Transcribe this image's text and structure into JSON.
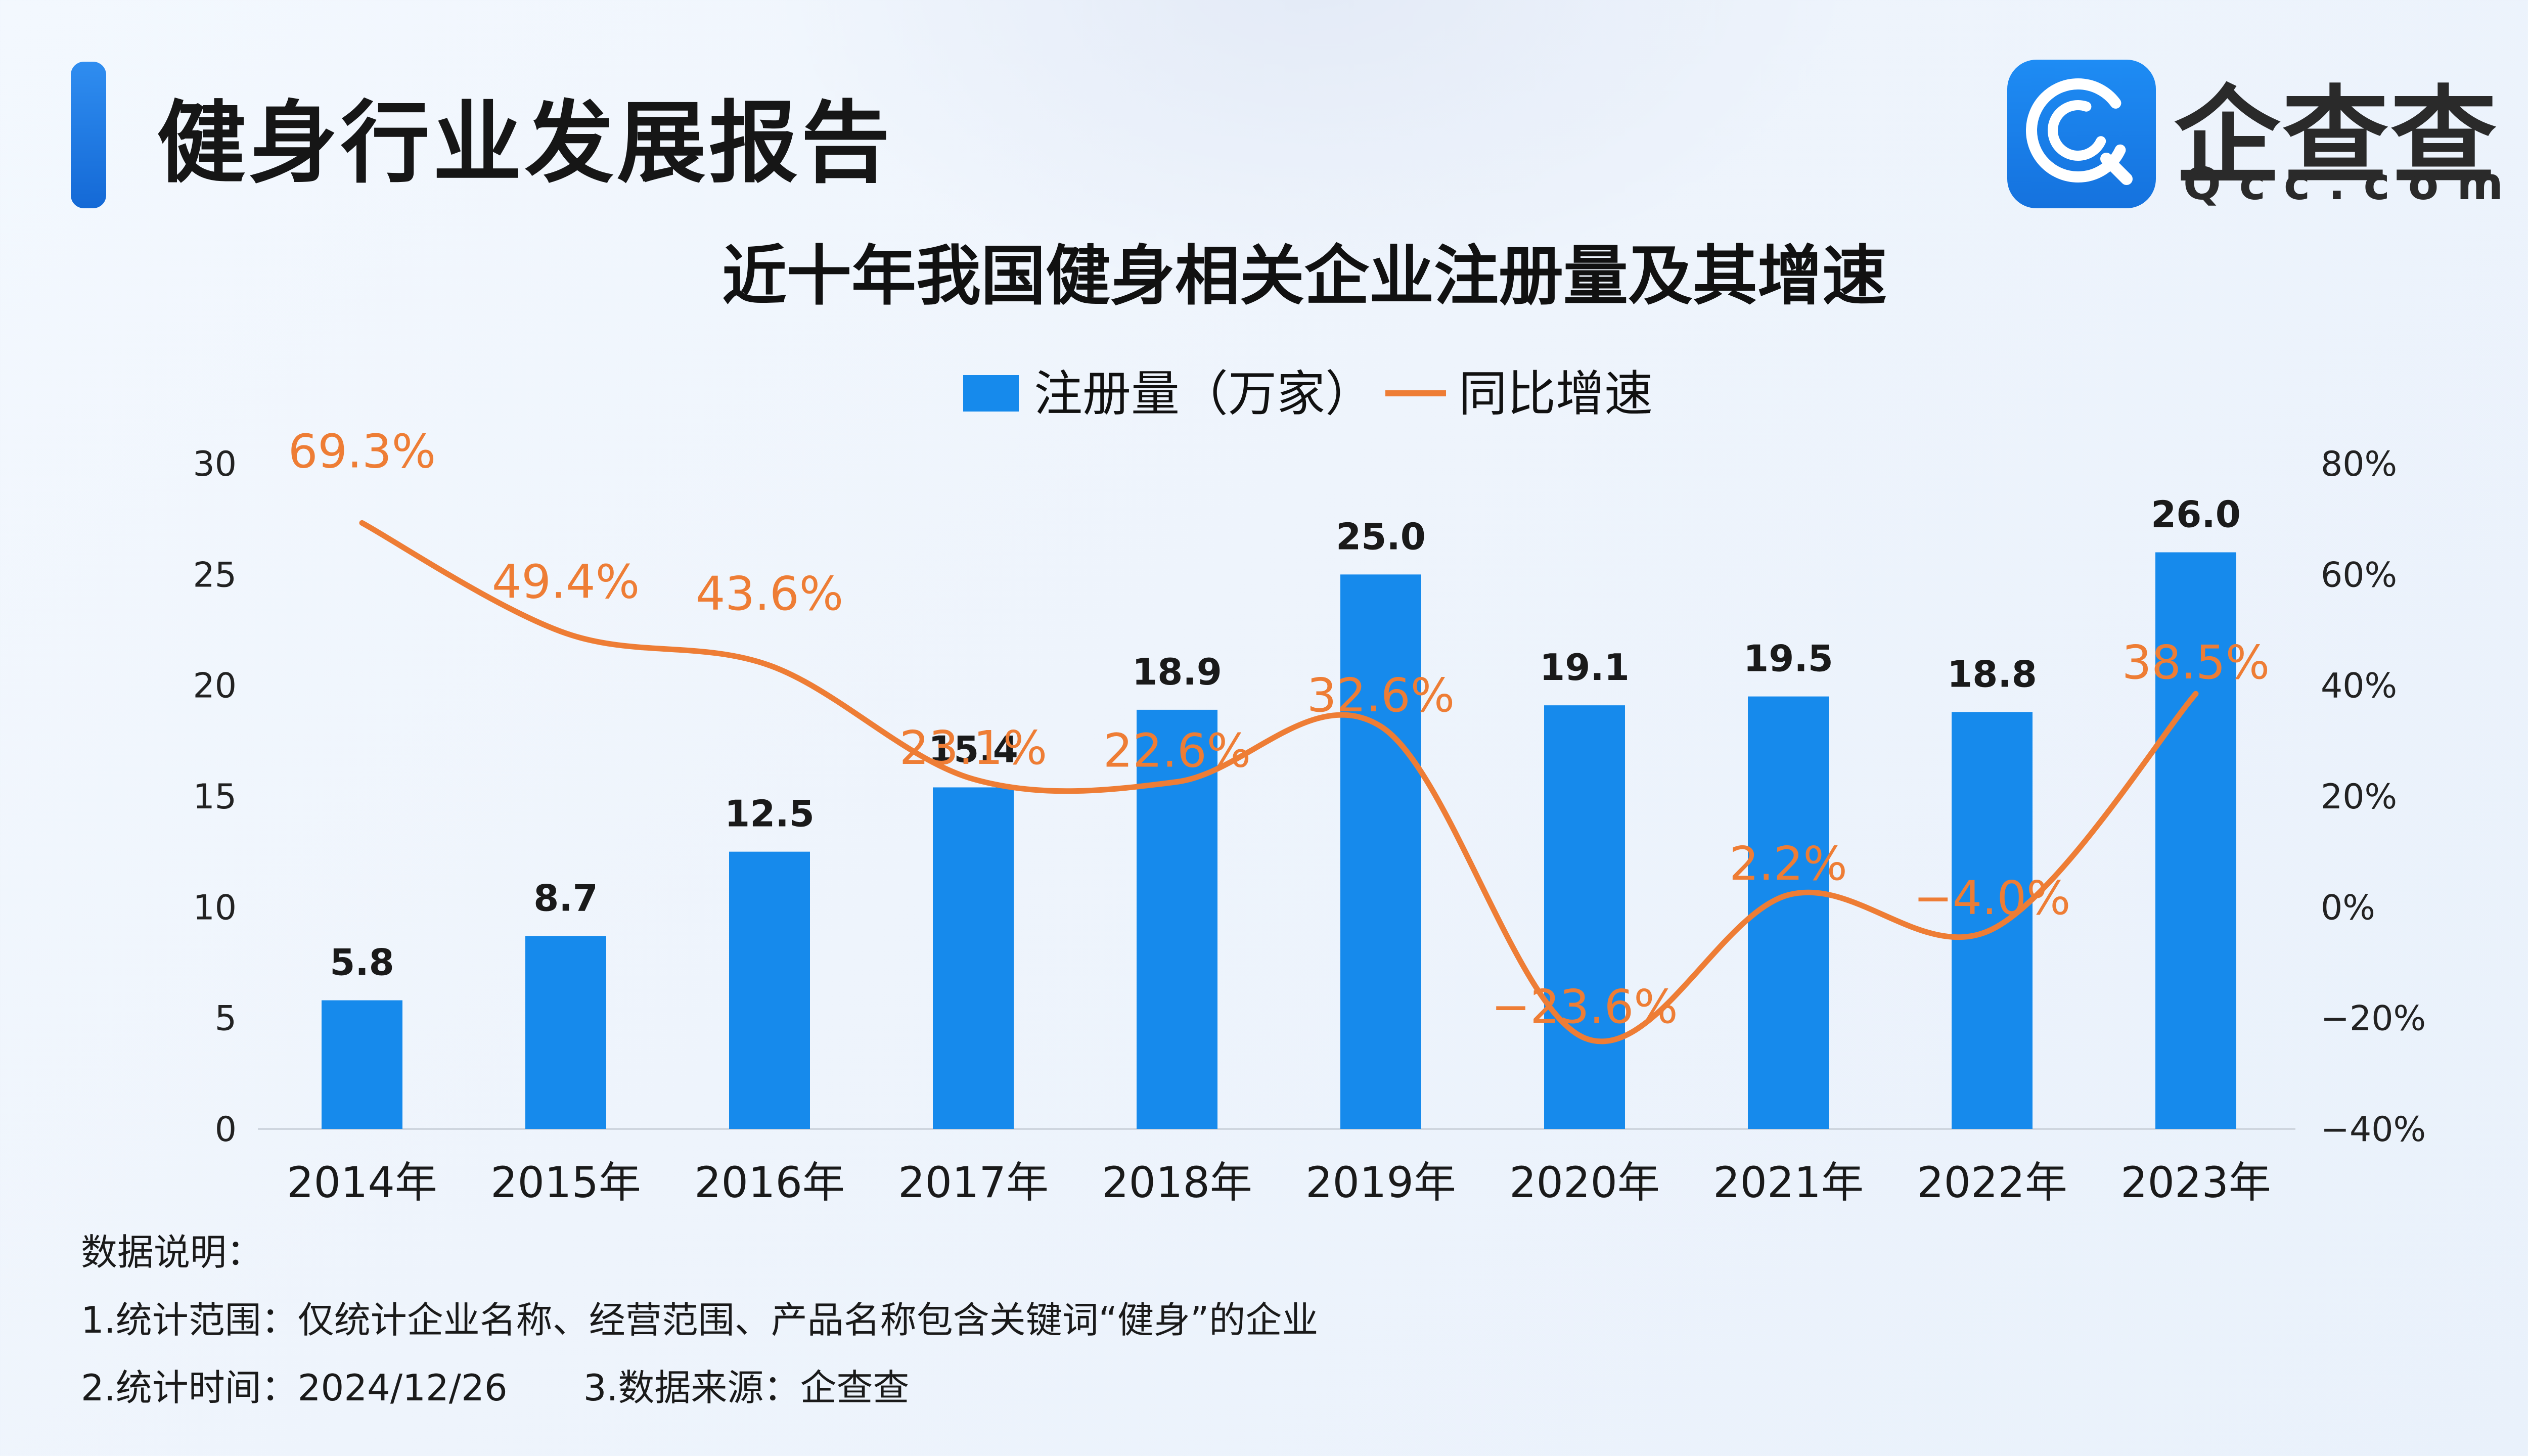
{
  "header": {
    "title": "健身行业发展报告",
    "logo_name": "企查查",
    "logo_domain": "Qcc.com"
  },
  "colors": {
    "bar": "#168aec",
    "line": "#ee7d35",
    "accent": "#1a7ae6"
  },
  "chart_data": {
    "type": "bar",
    "title": "近十年我国健身相关企业注册量及其增速",
    "categories": [
      "2014年",
      "2015年",
      "2016年",
      "2017年",
      "2018年",
      "2019年",
      "2020年",
      "2021年",
      "2022年",
      "2023年"
    ],
    "series": [
      {
        "name": "注册量（万家）",
        "type": "bar",
        "axis": "left",
        "values": [
          5.8,
          8.7,
          12.5,
          15.4,
          18.9,
          25.0,
          19.1,
          19.5,
          18.8,
          26.0
        ],
        "labels": [
          "5.8",
          "8.7",
          "12.5",
          "15.4",
          "18.9",
          "25.0",
          "19.1",
          "19.5",
          "18.8",
          "26.0"
        ]
      },
      {
        "name": "同比增速",
        "type": "line",
        "axis": "right",
        "values": [
          69.3,
          49.4,
          43.6,
          23.1,
          22.6,
          32.6,
          -23.6,
          2.2,
          -4.0,
          38.5
        ],
        "labels": [
          "69.3%",
          "49.4%",
          "43.6%",
          "23.1%",
          "22.6%",
          "32.6%",
          "−23.6%",
          "2.2%",
          "−4.0%",
          "38.5%"
        ]
      }
    ],
    "ylim_left": [
      0,
      30
    ],
    "yticks_left": [
      "30",
      "25",
      "20",
      "15",
      "10",
      "5",
      "0"
    ],
    "ylim_right": [
      -40,
      80
    ],
    "yticks_right": [
      "80%",
      "60%",
      "40%",
      "20%",
      "0%",
      "−20%",
      "−40%"
    ],
    "legend_position": "top-center",
    "grid": false
  },
  "notes": {
    "heading": "数据说明：",
    "scope": "1.统计范围：仅统计企业名称、经营范围、产品名称包含关键词“健身”的企业",
    "time": "2.统计时间：2024/12/26",
    "source": "3.数据来源：企查查"
  }
}
